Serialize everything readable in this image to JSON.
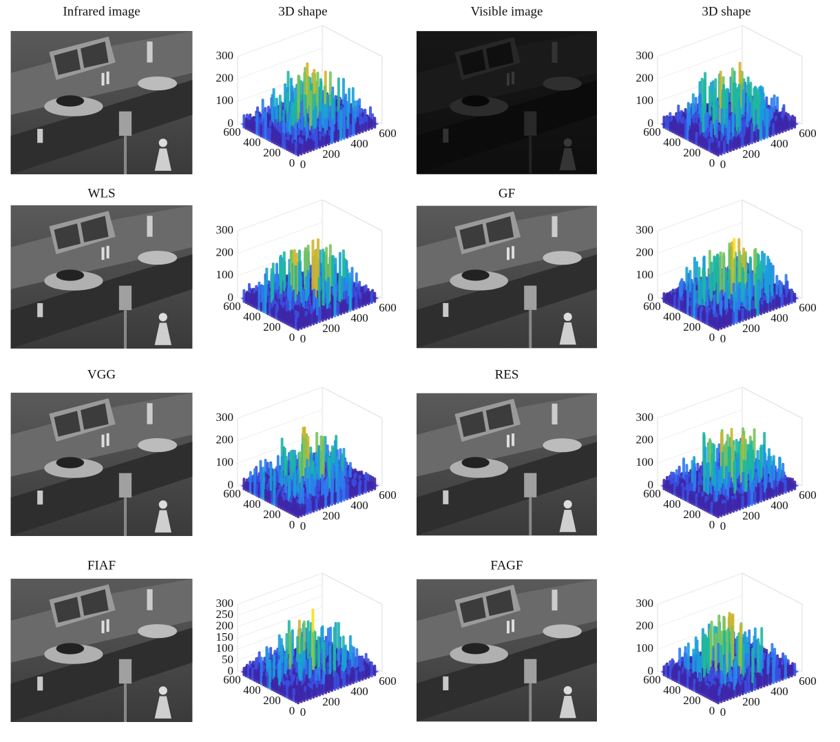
{
  "rows": [
    {
      "panels": [
        {
          "title": "Infrared image"
        },
        {
          "title": "3D shape",
          "zticks": [
            0,
            100,
            200,
            300
          ],
          "yticks": [
            600,
            400,
            200,
            0
          ],
          "xticks": [
            0,
            200,
            400,
            600
          ]
        },
        {
          "title": "Visible image"
        },
        {
          "title": "3D shape",
          "zticks": [
            0,
            100,
            200,
            300
          ],
          "yticks": [
            600,
            400,
            200,
            0
          ],
          "xticks": [
            0,
            200,
            400,
            600
          ]
        }
      ]
    },
    {
      "panels": [
        {
          "title": "WLS"
        },
        {
          "zticks": [
            0,
            100,
            200,
            300
          ],
          "yticks": [
            600,
            400,
            200,
            0
          ],
          "xticks": [
            0,
            200,
            400,
            600
          ]
        },
        {
          "title": "GF"
        },
        {
          "zticks": [
            0,
            100,
            200,
            300
          ],
          "yticks": [
            600,
            400,
            200,
            0
          ],
          "xticks": [
            0,
            200,
            400,
            600
          ]
        }
      ]
    },
    {
      "panels": [
        {
          "title": "VGG"
        },
        {
          "zticks": [
            0,
            100,
            200,
            300
          ],
          "yticks": [
            600,
            400,
            200,
            0
          ],
          "xticks": [
            0,
            200,
            400,
            600
          ]
        },
        {
          "title": "RES"
        },
        {
          "zticks": [
            0,
            100,
            200,
            300
          ],
          "yticks": [
            600,
            400,
            200,
            0
          ],
          "xticks": [
            0,
            200,
            400,
            600
          ]
        }
      ]
    },
    {
      "panels": [
        {
          "title": "FIAF"
        },
        {
          "zticks": [
            0,
            50,
            100,
            150,
            200,
            250,
            300
          ],
          "yticks": [
            600,
            400,
            200,
            0
          ],
          "xticks": [
            0,
            200,
            400,
            600
          ]
        },
        {
          "title": "FAGF"
        },
        {
          "zticks": [
            0,
            100,
            200,
            300
          ],
          "yticks": [
            600,
            400,
            200,
            0
          ],
          "xticks": [
            0,
            200,
            400,
            600
          ]
        }
      ]
    }
  ]
}
